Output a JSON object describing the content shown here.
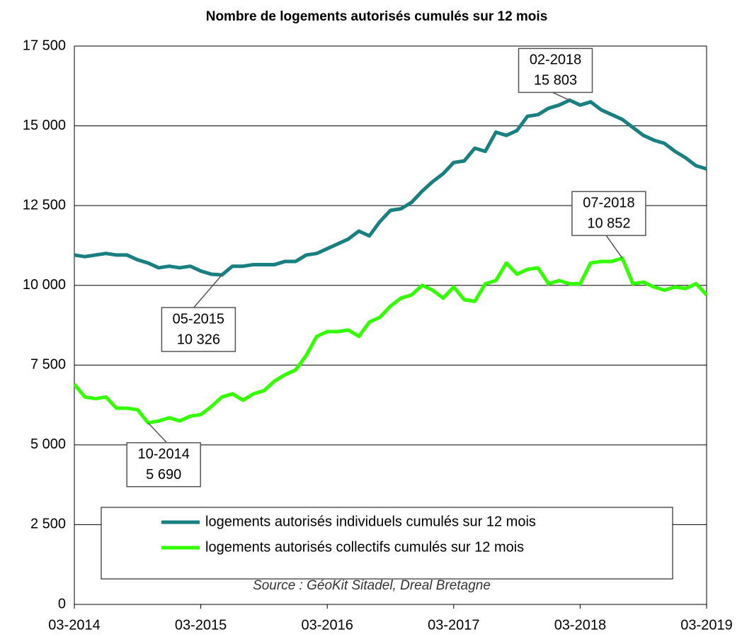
{
  "chart_data": {
    "type": "line",
    "title": "Nombre de logements autorisés cumulés sur 12 mois",
    "source": "Source : GéoKit Sitadel, Dreal Bretagne",
    "categories": [
      "03-2014",
      null,
      null,
      null,
      null,
      null,
      null,
      null,
      null,
      null,
      null,
      null,
      "03-2015",
      null,
      null,
      null,
      null,
      null,
      null,
      null,
      null,
      null,
      null,
      null,
      "03-2016",
      null,
      null,
      null,
      null,
      null,
      null,
      null,
      null,
      null,
      null,
      null,
      "03-2017",
      null,
      null,
      null,
      null,
      null,
      null,
      null,
      null,
      null,
      null,
      null,
      "03-2018",
      null,
      null,
      null,
      null,
      null,
      null,
      null,
      null,
      null,
      null,
      null,
      "03-2019"
    ],
    "series": [
      {
        "name": "logements autorisés individuels cumulés sur 12 mois",
        "color": "#1a7f80",
        "values": [
          10950,
          10900,
          10950,
          11000,
          10950,
          10950,
          10800,
          10700,
          10550,
          10600,
          10550,
          10600,
          10450,
          10350,
          10326,
          10600,
          10600,
          10650,
          10650,
          10650,
          10750,
          10750,
          10950,
          11000,
          11150,
          11300,
          11450,
          11700,
          11550,
          12000,
          12350,
          12400,
          12600,
          12950,
          13250,
          13500,
          13850,
          13900,
          14300,
          14200,
          14800,
          14700,
          14850,
          15300,
          15350,
          15550,
          15650,
          15803,
          15650,
          15750,
          15500,
          15350,
          15200,
          14950,
          14700,
          14550,
          14450,
          14200,
          14000,
          13750,
          13650
        ]
      },
      {
        "name": "logements autorisés collectifs cumulés sur 12 mois",
        "color": "#33ff00",
        "values": [
          6900,
          6500,
          6450,
          6500,
          6150,
          6150,
          6100,
          5690,
          5750,
          5850,
          5750,
          5900,
          5950,
          6200,
          6500,
          6600,
          6400,
          6600,
          6700,
          7000,
          7200,
          7350,
          7800,
          8400,
          8550,
          8550,
          8600,
          8400,
          8850,
          9000,
          9350,
          9600,
          9700,
          10000,
          9850,
          9600,
          9950,
          9550,
          9500,
          10050,
          10150,
          10700,
          10350,
          10500,
          10550,
          10050,
          10150,
          10050,
          10050,
          10700,
          10750,
          10750,
          10852,
          10050,
          10100,
          9950,
          9850,
          9950,
          9900,
          10050,
          9700
        ]
      }
    ],
    "annotations": [
      {
        "date": "02-2018",
        "value": 15803,
        "label": "15 803"
      },
      {
        "date": "05-2015",
        "value": 10326,
        "label": "10 326"
      },
      {
        "date": "10-2014",
        "value": 5690,
        "label": "5 690"
      },
      {
        "date": "07-2018",
        "value": 10852,
        "label": "10 852"
      }
    ],
    "ylim": [
      0,
      17500
    ],
    "yticks": [
      0,
      {
        "value": 2500,
        "label": "2 500"
      },
      {
        "value": 5000,
        "label": "5 000"
      },
      {
        "value": 7500,
        "label": "7 500"
      },
      {
        "value": 10000,
        "label": "10 000"
      },
      {
        "value": 12500,
        "label": "12 500"
      },
      {
        "value": 15000,
        "label": "15 000"
      },
      {
        "value": 17500,
        "label": "17 500"
      }
    ],
    "grid": true
  }
}
